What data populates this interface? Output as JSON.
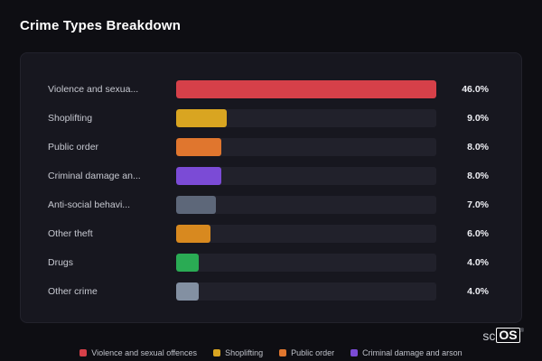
{
  "title": "Crime Types Breakdown",
  "colors": {
    "background": "#0e0e13",
    "card": "#17171f",
    "track": "#21212b",
    "accent_red": "#d64049"
  },
  "chart_data": {
    "type": "bar",
    "orientation": "horizontal",
    "title": "Crime Types Breakdown",
    "xlabel": "",
    "ylabel": "",
    "xlim": [
      0,
      46
    ],
    "grid": false,
    "legend_position": "bottom",
    "categories": [
      "Violence and sexua...",
      "Shoplifting",
      "Public order",
      "Criminal damage an...",
      "Anti-social behavi...",
      "Other theft",
      "Drugs",
      "Other crime"
    ],
    "values": [
      46.0,
      9.0,
      8.0,
      8.0,
      7.0,
      6.0,
      4.0,
      4.0
    ],
    "value_labels": [
      "46.0%",
      "9.0%",
      "8.0%",
      "8.0%",
      "7.0%",
      "6.0%",
      "4.0%",
      "4.0%"
    ],
    "rows": [
      {
        "label": "Violence and sexua...",
        "value": 46.0,
        "pct": "46.0%",
        "color": "#d64049"
      },
      {
        "label": "Shoplifting",
        "value": 9.0,
        "pct": "9.0%",
        "color": "#d9a521"
      },
      {
        "label": "Public order",
        "value": 8.0,
        "pct": "8.0%",
        "color": "#e0762e"
      },
      {
        "label": "Criminal damage an...",
        "value": 8.0,
        "pct": "8.0%",
        "color": "#7b4bd6"
      },
      {
        "label": "Anti-social behavi...",
        "value": 7.0,
        "pct": "7.0%",
        "color": "#5d6779"
      },
      {
        "label": "Other theft",
        "value": 6.0,
        "pct": "6.0%",
        "color": "#d8891f"
      },
      {
        "label": "Drugs",
        "value": 4.0,
        "pct": "4.0%",
        "color": "#2aab54"
      },
      {
        "label": "Other crime",
        "value": 4.0,
        "pct": "4.0%",
        "color": "#8390a2"
      }
    ]
  },
  "legend": [
    {
      "label": "Violence and sexual offences",
      "color": "#d64049"
    },
    {
      "label": "Shoplifting",
      "color": "#d9a521"
    },
    {
      "label": "Public order",
      "color": "#e0762e"
    },
    {
      "label": "Criminal damage and arson",
      "color": "#7b4bd6"
    }
  ],
  "logo": {
    "prefix": "sc",
    "box": "OS",
    "reg": "®"
  }
}
